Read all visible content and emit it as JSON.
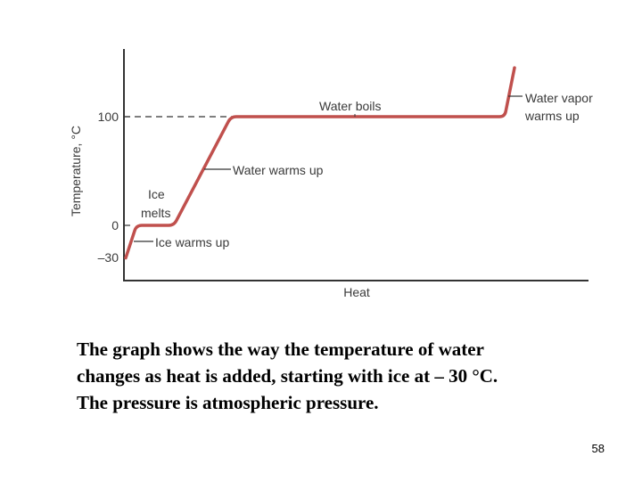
{
  "chart_data": {
    "type": "line",
    "xlabel": "Heat",
    "ylabel": "Temperature, °C",
    "y_ticks": [
      "100",
      "0",
      "–30"
    ],
    "ylim": [
      -30,
      150
    ],
    "series": [
      {
        "points": [
          {
            "heat": 0,
            "temp": -30
          },
          {
            "heat": 1,
            "temp": 0
          },
          {
            "heat": 4,
            "temp": 0
          },
          {
            "heat": 7,
            "temp": 100
          },
          {
            "heat": 23,
            "temp": 100
          },
          {
            "heat": 24,
            "temp": 145
          }
        ]
      }
    ],
    "annotations": [
      {
        "lines": [
          "Water boils"
        ]
      },
      {
        "lines": [
          "Water vapor",
          "warms up"
        ]
      },
      {
        "lines": [
          "Water warms up"
        ]
      },
      {
        "lines": [
          "Ice",
          "melts"
        ]
      },
      {
        "lines": [
          "Ice warms up"
        ]
      }
    ],
    "line_color": "#c0504d"
  },
  "caption": {
    "lines": [
      "The graph shows the way the temperature of water",
      "changes as heat is added, starting with ice at – 30 °C.",
      "The pressure is atmospheric pressure."
    ]
  },
  "page_number": "58"
}
